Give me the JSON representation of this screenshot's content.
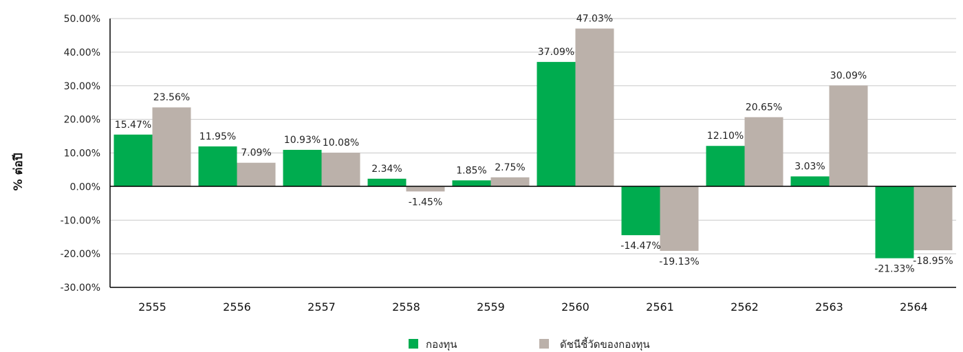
{
  "chart_data": {
    "type": "bar",
    "ylabel": "% ต่อปี",
    "ylim": [
      -0.3,
      0.5
    ],
    "ytick_values": [
      -0.3,
      -0.2,
      -0.1,
      0.0,
      0.1,
      0.2,
      0.3,
      0.4,
      0.5
    ],
    "ytick_labels": [
      "-30.00%",
      "-20.00%",
      "-10.00%",
      "0.00%",
      "10.00%",
      "20.00%",
      "30.00%",
      "40.00%",
      "50.00%"
    ],
    "categories": [
      "2555",
      "2556",
      "2557",
      "2558",
      "2559",
      "2560",
      "2561",
      "2562",
      "2563",
      "2564"
    ],
    "grid": true,
    "legend_position": "bottom",
    "series": [
      {
        "name": "กองทุน",
        "color": "#00ac4f",
        "values": [
          0.1547,
          0.1195,
          0.1093,
          0.0234,
          0.0185,
          0.3709,
          -0.1447,
          0.121,
          0.0303,
          -0.2133
        ],
        "labels": [
          "15.47%",
          "11.95%",
          "10.93%",
          "2.34%",
          "1.85%",
          "37.09%",
          "-14.47%",
          "12.10%",
          "3.03%",
          "-21.33%"
        ]
      },
      {
        "name": "ดัชนีชี้วัดของกองทุน",
        "color": "#bbb1aa",
        "values": [
          0.2356,
          0.0709,
          0.1008,
          -0.0145,
          0.0275,
          0.4703,
          -0.1913,
          0.2065,
          0.3009,
          -0.1895
        ],
        "labels": [
          "23.56%",
          "7.09%",
          "10.08%",
          "-1.45%",
          "2.75%",
          "47.03%",
          "-19.13%",
          "20.65%",
          "30.09%",
          "-18.95%"
        ]
      }
    ]
  }
}
